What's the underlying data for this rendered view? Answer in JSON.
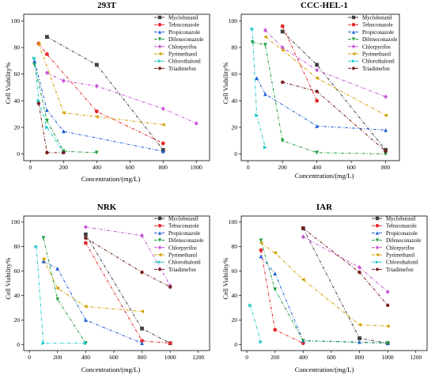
{
  "chart_data": [
    {
      "type": "line",
      "title": "293T",
      "xlabel": "Concentration/(mg/L)",
      "ylabel": "Cell Viability%",
      "xlim": [
        -40,
        1080
      ],
      "ylim": [
        -5,
        105
      ],
      "xticks": [
        "0",
        "200",
        "400",
        "600",
        "800",
        "1000"
      ],
      "yticks": [
        "0",
        "20",
        "40",
        "60",
        "80",
        "100"
      ],
      "legend_position": "top-right",
      "series": [
        {
          "name": "Myclobutanil",
          "color": "#404040",
          "marker": "square",
          "x": [
            100,
            400,
            800
          ],
          "y": [
            88,
            67,
            3
          ]
        },
        {
          "name": "Tebuconazole",
          "color": "#e8262b",
          "marker": "circle",
          "x": [
            50,
            100,
            400,
            800
          ],
          "y": [
            83,
            75,
            32,
            8
          ]
        },
        {
          "name": "Propiconazole",
          "color": "#1f5fd6",
          "marker": "triangle-up",
          "x": [
            25,
            100,
            200,
            800
          ],
          "y": [
            70,
            33,
            17,
            2
          ]
        },
        {
          "name": "Difenoconazole",
          "color": "#1e9e3e",
          "marker": "triangle-down",
          "x": [
            25,
            100,
            200,
            400
          ],
          "y": [
            67,
            25,
            2,
            1
          ]
        },
        {
          "name": "Chlorpyrifos",
          "color": "#c655d6",
          "marker": "diamond",
          "x": [
            100,
            200,
            400,
            800,
            1000
          ],
          "y": [
            61,
            55,
            51,
            34,
            23
          ]
        },
        {
          "name": "Pyrimethanil",
          "color": "#d4a000",
          "marker": "triangle-left",
          "x": [
            50,
            200,
            400,
            800
          ],
          "y": [
            83,
            31,
            28,
            22
          ]
        },
        {
          "name": "Chlorothalonil",
          "color": "#1ec8c8",
          "marker": "triangle-right",
          "x": [
            25,
            50,
            100,
            200
          ],
          "y": [
            72,
            40,
            20,
            1
          ]
        },
        {
          "name": "Triadimefon",
          "color": "#7a1f1f",
          "marker": "hexagon",
          "x": [
            50,
            100,
            200
          ],
          "y": [
            38,
            1,
            1
          ]
        }
      ]
    },
    {
      "type": "line",
      "title": "CCC-HEL-1",
      "xlabel": "Concentration/(mg/L)",
      "ylabel": "Cell Viability%",
      "xlim": [
        -40,
        880
      ],
      "ylim": [
        -5,
        105
      ],
      "xticks": [
        "0",
        "200",
        "400",
        "600",
        "800"
      ],
      "yticks": [
        "0",
        "20",
        "40",
        "60",
        "80",
        "100"
      ],
      "legend_position": "top-right",
      "series": [
        {
          "name": "Myclobutanil",
          "color": "#404040",
          "marker": "square",
          "x": [
            200,
            400,
            800
          ],
          "y": [
            92,
            67,
            3
          ]
        },
        {
          "name": "Tebuconazole",
          "color": "#e8262b",
          "marker": "circle",
          "x": [
            200,
            400
          ],
          "y": [
            96,
            40
          ]
        },
        {
          "name": "Propiconazole",
          "color": "#1f5fd6",
          "marker": "triangle-up",
          "x": [
            50,
            100,
            400,
            800
          ],
          "y": [
            57,
            45,
            21,
            18
          ]
        },
        {
          "name": "Difenoconazole",
          "color": "#1e9e3e",
          "marker": "triangle-down",
          "x": [
            25,
            100,
            200,
            400,
            800
          ],
          "y": [
            84,
            82,
            10,
            1,
            0
          ]
        },
        {
          "name": "Chlorpyrifos",
          "color": "#c655d6",
          "marker": "diamond",
          "x": [
            100,
            200,
            400,
            800
          ],
          "y": [
            93,
            80,
            63,
            43
          ]
        },
        {
          "name": "Pyrimethanil",
          "color": "#d4a000",
          "marker": "triangle-left",
          "x": [
            100,
            200,
            400,
            800
          ],
          "y": [
            88,
            78,
            57,
            29
          ]
        },
        {
          "name": "Chlorothalonil",
          "color": "#1ec8c8",
          "marker": "triangle-right",
          "x": [
            25,
            50,
            100
          ],
          "y": [
            94,
            29,
            5
          ]
        },
        {
          "name": "Triadimefon",
          "color": "#7a1f1f",
          "marker": "hexagon",
          "x": [
            200,
            400,
            800
          ],
          "y": [
            54,
            47,
            2
          ]
        }
      ]
    },
    {
      "type": "line",
      "title": "NRK",
      "xlabel": "Concentration/(mg/L)",
      "ylabel": "Cell Viability%",
      "xlim": [
        -40,
        1280
      ],
      "ylim": [
        -5,
        105
      ],
      "xticks": [
        "0",
        "200",
        "400",
        "600",
        "800",
        "1000",
        "1200"
      ],
      "yticks": [
        "0",
        "20",
        "40",
        "60",
        "80",
        "100"
      ],
      "legend_position": "top-right",
      "series": [
        {
          "name": "Myclobutanil",
          "color": "#404040",
          "marker": "square",
          "x": [
            400,
            800,
            1000
          ],
          "y": [
            90,
            13,
            1
          ]
        },
        {
          "name": "Tebuconazole",
          "color": "#e8262b",
          "marker": "circle",
          "x": [
            400,
            800,
            1000
          ],
          "y": [
            83,
            3,
            1
          ]
        },
        {
          "name": "Propiconazole",
          "color": "#1f5fd6",
          "marker": "triangle-up",
          "x": [
            100,
            200,
            400,
            800
          ],
          "y": [
            68,
            62,
            20,
            1
          ]
        },
        {
          "name": "Difenoconazole",
          "color": "#1e9e3e",
          "marker": "triangle-down",
          "x": [
            100,
            200,
            400
          ],
          "y": [
            87,
            37,
            1
          ]
        },
        {
          "name": "Chlorpyrifos",
          "color": "#c655d6",
          "marker": "diamond",
          "x": [
            400,
            800,
            1000
          ],
          "y": [
            96,
            89,
            48
          ]
        },
        {
          "name": "Pyrimethanil",
          "color": "#d4a000",
          "marker": "triangle-left",
          "x": [
            100,
            200,
            400,
            800
          ],
          "y": [
            70,
            46,
            31,
            27
          ]
        },
        {
          "name": "Chlorothalonil",
          "color": "#1ec8c8",
          "marker": "triangle-right",
          "x": [
            50,
            100,
            400
          ],
          "y": [
            80,
            1,
            1
          ]
        },
        {
          "name": "Triadimefon",
          "color": "#7a1f1f",
          "marker": "hexagon",
          "x": [
            400,
            800,
            1000
          ],
          "y": [
            87,
            59,
            47
          ]
        }
      ]
    },
    {
      "type": "line",
      "title": "IAR",
      "xlabel": "Concentration/(mg/L)",
      "ylabel": "Cell Viability%",
      "xlim": [
        -40,
        1280
      ],
      "ylim": [
        -5,
        105
      ],
      "xticks": [
        "0",
        "200",
        "400",
        "600",
        "800",
        "1000",
        "1200"
      ],
      "yticks": [
        "0",
        "20",
        "40",
        "60",
        "80",
        "100"
      ],
      "legend_position": "top-right",
      "series": [
        {
          "name": "Myclobutanil",
          "color": "#404040",
          "marker": "square",
          "x": [
            400,
            800,
            1000
          ],
          "y": [
            95,
            5,
            1
          ]
        },
        {
          "name": "Tebuconazole",
          "color": "#e8262b",
          "marker": "circle",
          "x": [
            100,
            200,
            400
          ],
          "y": [
            77,
            12,
            1
          ]
        },
        {
          "name": "Propiconazole",
          "color": "#1f5fd6",
          "marker": "triangle-up",
          "x": [
            100,
            200,
            400,
            800,
            1000
          ],
          "y": [
            72,
            58,
            3,
            2,
            1
          ]
        },
        {
          "name": "Difenoconazole",
          "color": "#1e9e3e",
          "marker": "triangle-down",
          "x": [
            100,
            200,
            400,
            1000
          ],
          "y": [
            85,
            45,
            3,
            1
          ]
        },
        {
          "name": "Chlorpyrifos",
          "color": "#c655d6",
          "marker": "diamond",
          "x": [
            400,
            800,
            1000
          ],
          "y": [
            88,
            63,
            43
          ]
        },
        {
          "name": "Pyrimethanil",
          "color": "#d4a000",
          "marker": "triangle-left",
          "x": [
            100,
            200,
            400,
            800,
            1000
          ],
          "y": [
            83,
            75,
            53,
            16,
            15
          ]
        },
        {
          "name": "Chlorothalonil",
          "color": "#1ec8c8",
          "marker": "triangle-right",
          "x": [
            25,
            100
          ],
          "y": [
            32,
            2
          ]
        },
        {
          "name": "Triadimefon",
          "color": "#7a1f1f",
          "marker": "hexagon",
          "x": [
            400,
            800,
            1000
          ],
          "y": [
            95,
            59,
            32
          ]
        }
      ]
    }
  ]
}
